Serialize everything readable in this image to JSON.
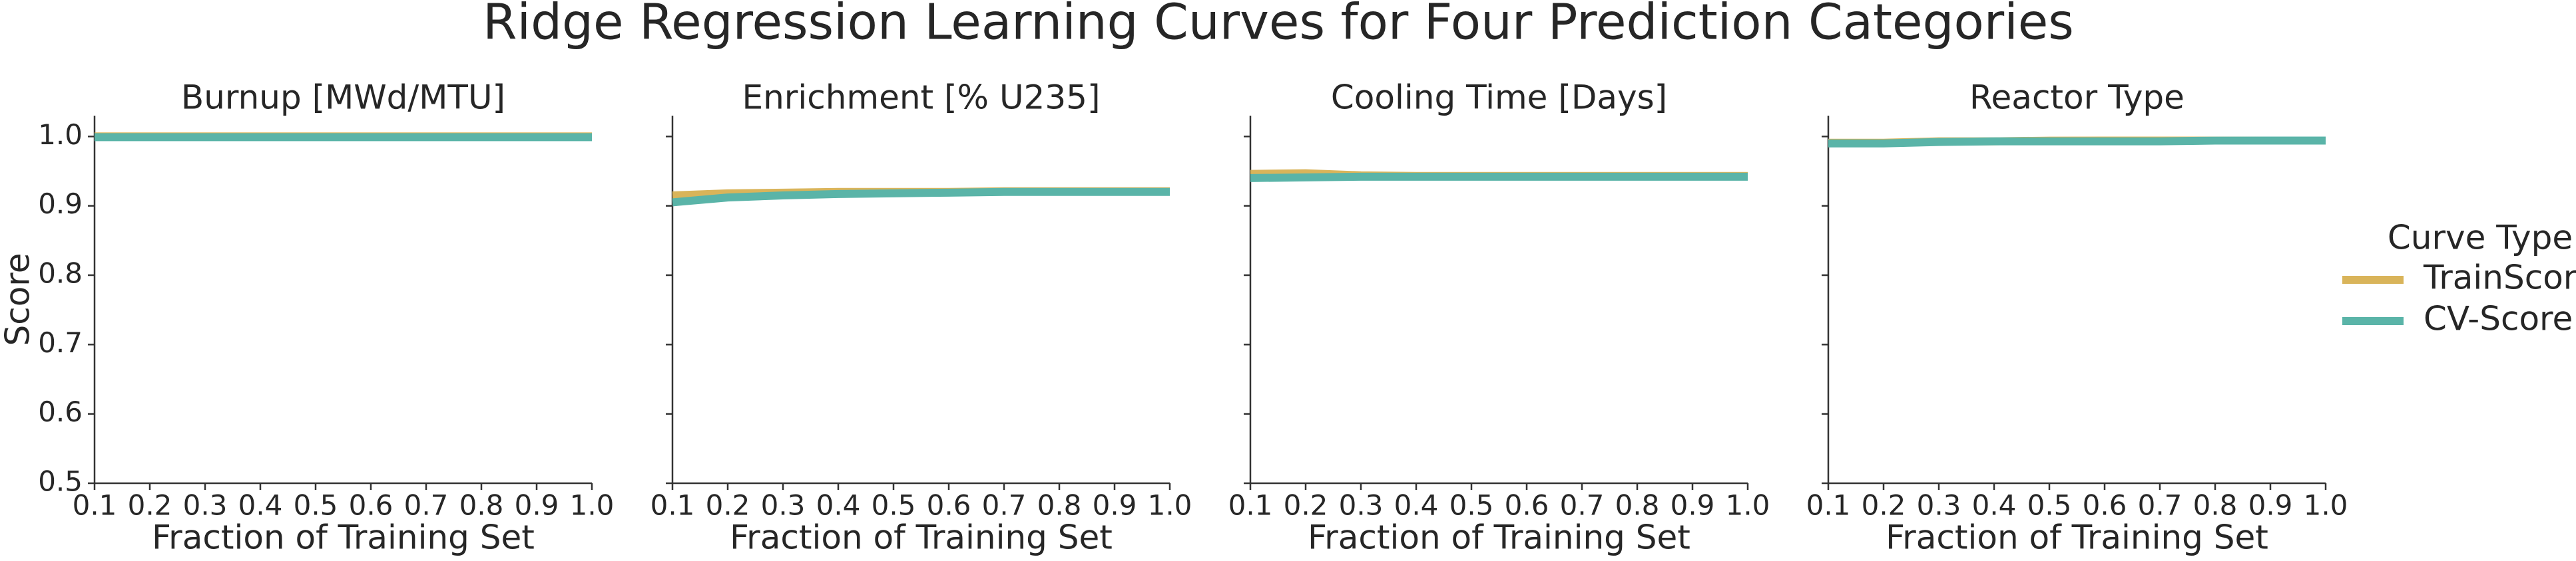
{
  "title": "Ridge Regression Learning Curves for Four Prediction Categories",
  "legend_title": "Curve Type",
  "chart_data": [
    {
      "type": "line",
      "title": "Burnup [MWd/MTU]",
      "xlabel": "Fraction of Training Set",
      "ylabel": "Score",
      "show_ytick_labels": true,
      "x": [
        0.1,
        0.2,
        0.3,
        0.4,
        0.5,
        0.6,
        0.7,
        0.8,
        0.9,
        1.0
      ],
      "series": [
        {
          "name": "TrainScore",
          "color": "#d9b45a",
          "values": [
            1.0,
            1.0,
            1.0,
            1.0,
            1.0,
            1.0,
            1.0,
            1.0,
            1.0,
            1.0
          ]
        },
        {
          "name": "CV-Score",
          "color": "#5ab4a8",
          "values": [
            0.999,
            0.999,
            0.999,
            0.999,
            0.999,
            0.999,
            0.999,
            0.999,
            0.999,
            0.999
          ]
        }
      ],
      "xlim": [
        0.1,
        1.0
      ],
      "xticks": [
        0.1,
        0.2,
        0.3,
        0.4,
        0.5,
        0.6,
        0.7,
        0.8,
        0.9,
        {
          "value": 1.0,
          "label": "1.0"
        }
      ],
      "ylim": [
        0.5,
        1.03
      ],
      "yticks": [
        0.5,
        0.6,
        0.7,
        0.8,
        0.9,
        {
          "value": 1.0,
          "label": "1.0"
        }
      ]
    },
    {
      "type": "line",
      "title": "Enrichment [% U235]",
      "xlabel": "Fraction of Training Set",
      "show_ytick_labels": false,
      "x": [
        0.1,
        0.2,
        0.3,
        0.4,
        0.5,
        0.6,
        0.7,
        0.8,
        0.9,
        1.0
      ],
      "series": [
        {
          "name": "TrainScore",
          "color": "#d9b45a",
          "values": [
            0.915,
            0.918,
            0.919,
            0.92,
            0.92,
            0.92,
            0.921,
            0.921,
            0.921,
            0.921
          ]
        },
        {
          "name": "CV-Score",
          "color": "#5ab4a8",
          "values": [
            0.905,
            0.912,
            0.915,
            0.917,
            0.918,
            0.919,
            0.92,
            0.92,
            0.92,
            0.92
          ]
        }
      ],
      "xlim": [
        0.1,
        1.0
      ],
      "xticks": [
        0.1,
        0.2,
        0.3,
        0.4,
        0.5,
        0.6,
        0.7,
        0.8,
        0.9,
        {
          "value": 1.0,
          "label": "1.0"
        }
      ],
      "ylim": [
        0.5,
        1.03
      ],
      "yticks": [
        0.5,
        0.6,
        0.7,
        0.8,
        0.9,
        {
          "value": 1.0,
          "label": "1.0"
        }
      ]
    },
    {
      "type": "line",
      "title": "Cooling Time [Days]",
      "xlabel": "Fraction of Training Set",
      "show_ytick_labels": false,
      "x": [
        0.1,
        0.2,
        0.3,
        0.4,
        0.5,
        0.6,
        0.7,
        0.8,
        0.9,
        1.0
      ],
      "series": [
        {
          "name": "TrainScore",
          "color": "#d9b45a",
          "values": [
            0.946,
            0.947,
            0.944,
            0.943,
            0.943,
            0.943,
            0.943,
            0.943,
            0.943,
            0.943
          ]
        },
        {
          "name": "CV-Score",
          "color": "#5ab4a8",
          "values": [
            0.94,
            0.941,
            0.942,
            0.942,
            0.942,
            0.942,
            0.942,
            0.942,
            0.942,
            0.942
          ]
        }
      ],
      "xlim": [
        0.1,
        1.0
      ],
      "xticks": [
        0.1,
        0.2,
        0.3,
        0.4,
        0.5,
        0.6,
        0.7,
        0.8,
        0.9,
        {
          "value": 1.0,
          "label": "1.0"
        }
      ],
      "ylim": [
        0.5,
        1.03
      ],
      "yticks": [
        0.5,
        0.6,
        0.7,
        0.8,
        0.9,
        {
          "value": 1.0,
          "label": "1.0"
        }
      ]
    },
    {
      "type": "line",
      "title": "Reactor Type",
      "xlabel": "Fraction of Training Set",
      "show_ytick_labels": false,
      "x": [
        0.1,
        0.2,
        0.3,
        0.4,
        0.5,
        0.6,
        0.7,
        0.8,
        0.9,
        1.0
      ],
      "series": [
        {
          "name": "TrainScore",
          "color": "#d9b45a",
          "values": [
            0.991,
            0.991,
            0.993,
            0.993,
            0.994,
            0.994,
            0.994,
            0.994,
            0.994,
            0.994
          ]
        },
        {
          "name": "CV-Score",
          "color": "#5ab4a8",
          "values": [
            0.99,
            0.99,
            0.992,
            0.993,
            0.993,
            0.993,
            0.993,
            0.994,
            0.994,
            0.994
          ]
        }
      ],
      "xlim": [
        0.1,
        1.0
      ],
      "xticks": [
        0.1,
        0.2,
        0.3,
        0.4,
        0.5,
        0.6,
        0.7,
        0.8,
        0.9,
        {
          "value": 1.0,
          "label": "1.0"
        }
      ],
      "ylim": [
        0.5,
        1.03
      ],
      "yticks": [
        0.5,
        0.6,
        0.7,
        0.8,
        0.9,
        {
          "value": 1.0,
          "label": "1.0"
        }
      ]
    }
  ]
}
